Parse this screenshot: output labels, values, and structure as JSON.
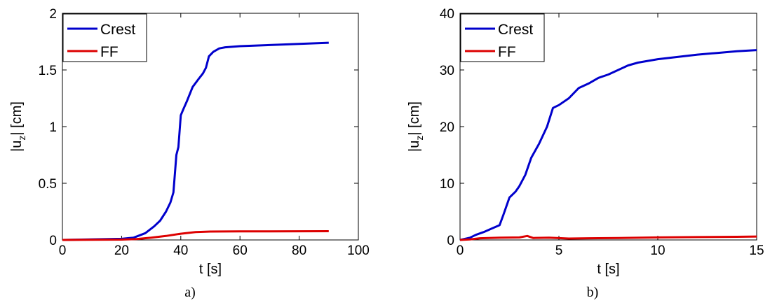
{
  "chart_data": [
    {
      "type": "line",
      "caption": "a)",
      "xlabel": "t [s]",
      "ylabel_main": "|u",
      "ylabel_sub": "z",
      "ylabel_tail": "| [cm]",
      "xlim": [
        0,
        100
      ],
      "ylim": [
        0,
        2
      ],
      "xticks": [
        0,
        20,
        40,
        60,
        80,
        100
      ],
      "yticks": [
        0,
        0.5,
        1,
        1.5,
        2
      ],
      "ytick_labels": [
        "0",
        "0.5",
        "1",
        "1.5",
        "2"
      ],
      "xtick_labels": [
        "0",
        "20",
        "40",
        "60",
        "80",
        "100"
      ],
      "grid": false,
      "legend_position": "top-left",
      "series": [
        {
          "name": "Crest",
          "color": "#0000cc",
          "x": [
            0,
            20,
            24,
            28,
            31,
            33,
            35,
            36.5,
            37.5,
            38.5,
            39.2,
            40,
            40.8,
            42,
            44,
            46,
            47.5,
            48.5,
            49.5,
            51,
            53,
            55,
            60,
            70,
            80,
            90
          ],
          "y": [
            0,
            0.01,
            0.02,
            0.06,
            0.12,
            0.17,
            0.25,
            0.33,
            0.42,
            0.75,
            0.82,
            1.1,
            1.15,
            1.22,
            1.35,
            1.42,
            1.47,
            1.52,
            1.62,
            1.66,
            1.69,
            1.7,
            1.71,
            1.72,
            1.73,
            1.74
          ]
        },
        {
          "name": "FF",
          "color": "#dd0000",
          "x": [
            0,
            20,
            25,
            30,
            35,
            40,
            45,
            50,
            60,
            70,
            90
          ],
          "y": [
            0,
            0.003,
            0.008,
            0.02,
            0.035,
            0.055,
            0.07,
            0.074,
            0.076,
            0.076,
            0.077
          ]
        }
      ]
    },
    {
      "type": "line",
      "caption": "b)",
      "xlabel": "t [s]",
      "ylabel_main": "|u",
      "ylabel_sub": "z",
      "ylabel_tail": "| [cm]",
      "xlim": [
        0,
        15
      ],
      "ylim": [
        0,
        40
      ],
      "xticks": [
        0,
        5,
        10,
        15
      ],
      "yticks": [
        0,
        10,
        20,
        30,
        40
      ],
      "ytick_labels": [
        "0",
        "10",
        "20",
        "30",
        "40"
      ],
      "xtick_labels": [
        "0",
        "5",
        "10",
        "15"
      ],
      "grid": false,
      "legend_position": "top-left",
      "series": [
        {
          "name": "Crest",
          "color": "#0000cc",
          "x": [
            0,
            0.5,
            0.8,
            1.2,
            1.6,
            2.0,
            2.2,
            2.5,
            2.8,
            3.0,
            3.3,
            3.6,
            4.0,
            4.4,
            4.7,
            5.0,
            5.5,
            6.0,
            6.5,
            7.0,
            7.5,
            8.0,
            8.5,
            9.0,
            10.0,
            11.0,
            12.0,
            13.0,
            14.0,
            15.0
          ],
          "y": [
            0,
            0.4,
            0.9,
            1.4,
            2.0,
            2.6,
            4.5,
            7.5,
            8.5,
            9.5,
            11.5,
            14.5,
            17.0,
            20.0,
            23.3,
            23.8,
            25.0,
            26.8,
            27.6,
            28.6,
            29.2,
            30.0,
            30.8,
            31.3,
            31.9,
            32.3,
            32.7,
            33.0,
            33.3,
            33.5
          ]
        },
        {
          "name": "FF",
          "color": "#dd0000",
          "x": [
            0,
            0.5,
            1.0,
            2.0,
            3.0,
            3.4,
            3.7,
            4.5,
            5.5,
            6.5,
            8,
            10,
            12,
            14,
            15
          ],
          "y": [
            0,
            0.1,
            0.3,
            0.4,
            0.45,
            0.7,
            0.35,
            0.4,
            0.25,
            0.3,
            0.35,
            0.45,
            0.5,
            0.55,
            0.6
          ]
        }
      ]
    }
  ]
}
